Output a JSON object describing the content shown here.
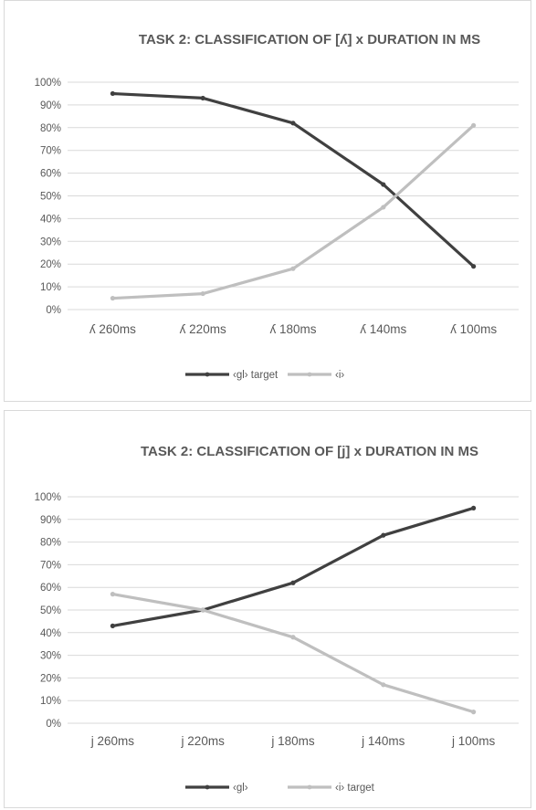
{
  "chart_data": [
    {
      "type": "line",
      "title": "TASK 2: CLASSIFICATION OF [ʎ]  x  DURATION IN MS",
      "xlabel": "",
      "ylabel": "",
      "categories": [
        "ʎ 260ms",
        "ʎ 220ms",
        "ʎ 180ms",
        "ʎ 140ms",
        "ʎ 100ms"
      ],
      "y_ticks": [
        "0%",
        "10%",
        "20%",
        "30%",
        "40%",
        "50%",
        "60%",
        "70%",
        "80%",
        "90%",
        "100%"
      ],
      "ylim": [
        0,
        1
      ],
      "grid": true,
      "legend_position": "bottom",
      "series": [
        {
          "name": "‹gl› target",
          "color": "#404040",
          "values": [
            0.95,
            0.93,
            0.82,
            0.55,
            0.19
          ]
        },
        {
          "name": "‹i›",
          "color": "#bfbfbf",
          "values": [
            0.05,
            0.07,
            0.18,
            0.45,
            0.81
          ]
        }
      ]
    },
    {
      "type": "line",
      "title": "TASK 2: CLASSIFICATION OF [j]  x  DURATION IN MS",
      "xlabel": "",
      "ylabel": "",
      "categories": [
        "j 260ms",
        "j 220ms",
        "j 180ms",
        "j 140ms",
        "j 100ms"
      ],
      "y_ticks": [
        "0%",
        "10%",
        "20%",
        "30%",
        "40%",
        "50%",
        "60%",
        "70%",
        "80%",
        "90%",
        "100%"
      ],
      "ylim": [
        0,
        1
      ],
      "grid": true,
      "legend_position": "bottom",
      "series": [
        {
          "name": "‹gl›",
          "color": "#404040",
          "values": [
            0.43,
            0.5,
            0.62,
            0.83,
            0.95
          ]
        },
        {
          "name": "‹i› target",
          "color": "#bfbfbf",
          "values": [
            0.57,
            0.5,
            0.38,
            0.17,
            0.05
          ]
        }
      ]
    }
  ]
}
